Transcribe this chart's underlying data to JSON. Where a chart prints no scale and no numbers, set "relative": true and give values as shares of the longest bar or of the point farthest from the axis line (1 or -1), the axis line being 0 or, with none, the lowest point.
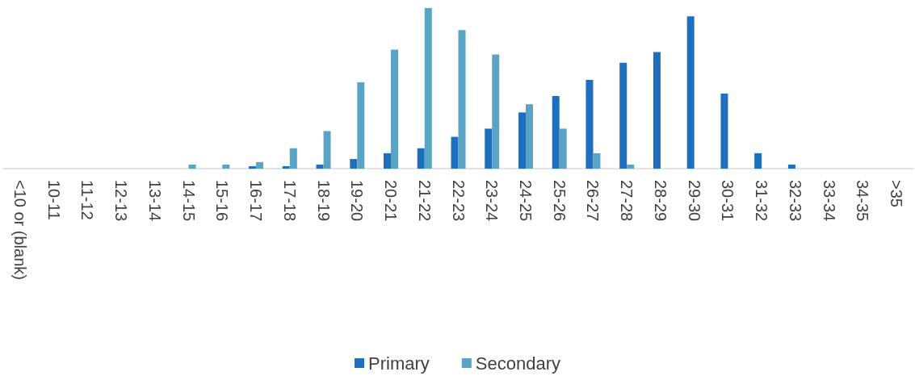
{
  "chart_data": {
    "type": "bar",
    "relative": true,
    "legend": "bottom",
    "grid": false,
    "categories": [
      "<10 or (blank)",
      "10-11",
      "11-12",
      "12-13",
      "13-14",
      "14-15",
      "15-16",
      "16-17",
      "17-18",
      "18-19",
      "19-20",
      "20-21",
      "21-22",
      "22-23",
      "23-24",
      "24-25",
      "25-26",
      "26-27",
      "27-28",
      "28-29",
      "29-30",
      "30-31",
      "31-32",
      "32-33",
      "33-34",
      "34-35",
      ">35"
    ],
    "series": [
      {
        "name": "Primary",
        "color": "#1f6fbf",
        "values": [
          0,
          0,
          0,
          0,
          0,
          0,
          0,
          0.015,
          0.015,
          0.025,
          0.06,
          0.096,
          0.127,
          0.198,
          0.249,
          0.35,
          0.452,
          0.553,
          0.66,
          0.726,
          0.949,
          0.467,
          0.096,
          0.025,
          0,
          0,
          0
        ]
      },
      {
        "name": "Secondary",
        "color": "#5ba3c4",
        "values": [
          0,
          0,
          0,
          0,
          0,
          0.025,
          0.025,
          0.041,
          0.127,
          0.234,
          0.538,
          0.741,
          1,
          0.863,
          0.711,
          0.401,
          0.249,
          0.096,
          0.025,
          0,
          0,
          0,
          0,
          0,
          0,
          0,
          0
        ]
      }
    ]
  }
}
